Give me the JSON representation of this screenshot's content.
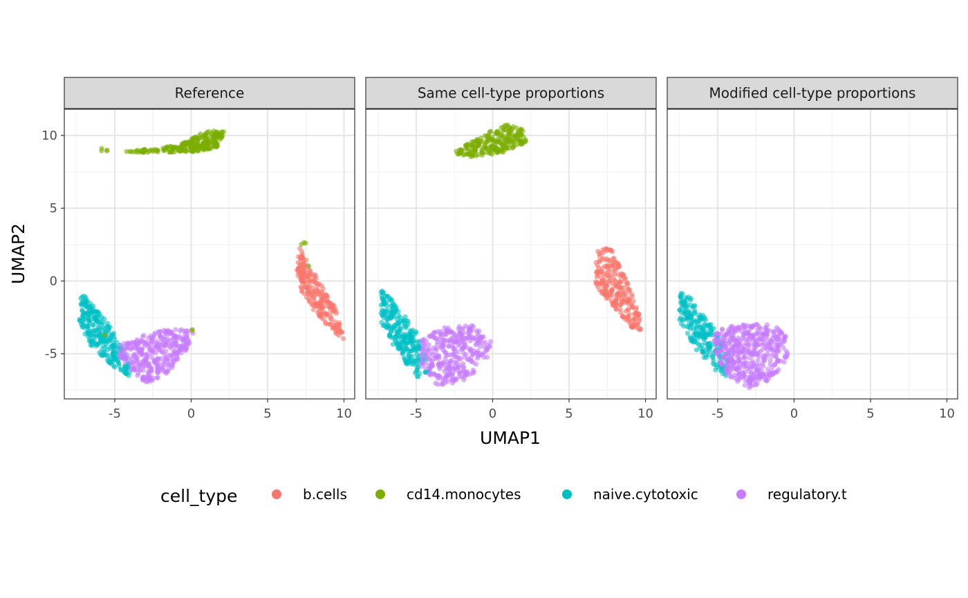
{
  "chart_data": {
    "type": "scatter",
    "xlabel": "UMAP1",
    "ylabel": "UMAP2",
    "xlim": [
      -8.3,
      10.7
    ],
    "ylim": [
      -8.1,
      11.8
    ],
    "x_ticks": [
      -5,
      0,
      5,
      10
    ],
    "y_ticks": [
      -5,
      0,
      5,
      10
    ],
    "x_tick_labels": [
      "-5",
      "0",
      "5",
      "10"
    ],
    "y_tick_labels": [
      "-5",
      "0",
      "5",
      "10"
    ],
    "grid": true,
    "legend_position": "bottom",
    "legend": {
      "title": "cell_type",
      "entries": [
        {
          "label": "b.cells",
          "color": "#F8766D"
        },
        {
          "label": "cd14.monocytes",
          "color": "#7CAE00"
        },
        {
          "label": "naive.cytotoxic",
          "color": "#00BFC4"
        },
        {
          "label": "regulatory.t",
          "color": "#C77CFF"
        }
      ]
    },
    "facets": [
      {
        "label": "Reference",
        "clusters": [
          {
            "cell_type": "cd14.monocytes",
            "n": 260,
            "polygon": [
              [
                -4.3,
                8.9
              ],
              [
                -1.0,
                9.3
              ],
              [
                1.0,
                10.3
              ],
              [
                2.2,
                10.3
              ],
              [
                1.7,
                9.2
              ],
              [
                0.5,
                8.9
              ],
              [
                -3.0,
                8.8
              ]
            ]
          },
          {
            "cell_type": "cd14.monocytes",
            "n": 4,
            "polygon": [
              [
                -5.9,
                9.15
              ],
              [
                -5.5,
                9.15
              ],
              [
                -5.5,
                8.9
              ],
              [
                -5.9,
                8.9
              ]
            ]
          },
          {
            "cell_type": "b.cells",
            "n": 230,
            "polygon": [
              [
                7.1,
                2.5
              ],
              [
                7.6,
                1.3
              ],
              [
                8.6,
                -0.4
              ],
              [
                9.4,
                -1.7
              ],
              [
                10.0,
                -4.0
              ],
              [
                9.2,
                -3.4
              ],
              [
                8.0,
                -2.0
              ],
              [
                7.2,
                -0.8
              ],
              [
                6.9,
                0.8
              ]
            ]
          },
          {
            "cell_type": "cd14.monocytes",
            "n": 3,
            "polygon": [
              [
                7.2,
                2.7
              ],
              [
                7.5,
                2.7
              ],
              [
                7.5,
                2.2
              ],
              [
                7.2,
                2.2
              ]
            ]
          },
          {
            "cell_type": "cd14.monocytes",
            "n": 1,
            "polygon": [
              [
                7.5,
                1.05
              ],
              [
                7.7,
                1.05
              ],
              [
                7.7,
                0.85
              ],
              [
                7.5,
                0.85
              ]
            ]
          },
          {
            "cell_type": "naive.cytotoxic",
            "n": 260,
            "polygon": [
              [
                -7.2,
                -0.7
              ],
              [
                -6.6,
                -1.5
              ],
              [
                -5.6,
                -2.7
              ],
              [
                -4.8,
                -4.0
              ],
              [
                -4.0,
                -5.8
              ],
              [
                -4.0,
                -6.6
              ],
              [
                -5.2,
                -5.8
              ],
              [
                -6.7,
                -4.3
              ],
              [
                -7.3,
                -2.7
              ]
            ]
          },
          {
            "cell_type": "regulatory.t",
            "n": 330,
            "polygon": [
              [
                -4.6,
                -4.3
              ],
              [
                -3.2,
                -3.7
              ],
              [
                -1.2,
                -3.2
              ],
              [
                0.3,
                -3.4
              ],
              [
                -0.4,
                -4.9
              ],
              [
                -1.5,
                -6.3
              ],
              [
                -3.0,
                -7.1
              ],
              [
                -4.0,
                -6.0
              ],
              [
                -4.8,
                -5.0
              ]
            ]
          },
          {
            "cell_type": "cd14.monocytes",
            "n": 2,
            "polygon": [
              [
                0.0,
                -3.3
              ],
              [
                0.3,
                -3.3
              ],
              [
                0.3,
                -3.6
              ],
              [
                0.0,
                -3.6
              ]
            ]
          },
          {
            "cell_type": "cd14.monocytes",
            "n": 1,
            "polygon": [
              [
                -5.8,
                -3.5
              ],
              [
                -5.5,
                -3.5
              ],
              [
                -5.5,
                -3.8
              ],
              [
                -5.8,
                -3.8
              ]
            ]
          }
        ]
      },
      {
        "label": "Same cell-type proportions",
        "clusters": [
          {
            "cell_type": "cd14.monocytes",
            "n": 230,
            "polygon": [
              [
                -2.6,
                8.8
              ],
              [
                -1.0,
                9.8
              ],
              [
                0.8,
                10.8
              ],
              [
                2.0,
                10.4
              ],
              [
                2.2,
                9.5
              ],
              [
                0.7,
                8.8
              ],
              [
                -1.5,
                8.5
              ]
            ]
          },
          {
            "cell_type": "b.cells",
            "n": 250,
            "polygon": [
              [
                6.8,
                2.1
              ],
              [
                7.6,
                2.5
              ],
              [
                8.7,
                0.3
              ],
              [
                9.6,
                -2.3
              ],
              [
                9.8,
                -3.5
              ],
              [
                9.0,
                -3.2
              ],
              [
                7.7,
                -1.6
              ],
              [
                6.7,
                -0.3
              ]
            ]
          },
          {
            "cell_type": "naive.cytotoxic",
            "n": 250,
            "polygon": [
              [
                -7.3,
                -0.6
              ],
              [
                -6.6,
                -1.3
              ],
              [
                -5.6,
                -2.6
              ],
              [
                -4.7,
                -3.9
              ],
              [
                -4.1,
                -6.3
              ],
              [
                -4.9,
                -6.6
              ],
              [
                -6.2,
                -5.0
              ],
              [
                -7.3,
                -2.9
              ]
            ]
          },
          {
            "cell_type": "regulatory.t",
            "n": 320,
            "polygon": [
              [
                -4.6,
                -4.0
              ],
              [
                -3.4,
                -3.2
              ],
              [
                -1.4,
                -3.0
              ],
              [
                -0.1,
                -4.1
              ],
              [
                -0.4,
                -5.8
              ],
              [
                -2.0,
                -6.9
              ],
              [
                -3.6,
                -7.2
              ],
              [
                -4.7,
                -5.8
              ]
            ]
          }
        ]
      },
      {
        "label": "Modified cell-type proportions",
        "clusters": [
          {
            "cell_type": "naive.cytotoxic",
            "n": 230,
            "polygon": [
              [
                -7.5,
                -0.6
              ],
              [
                -6.7,
                -1.2
              ],
              [
                -5.8,
                -2.4
              ],
              [
                -4.9,
                -3.6
              ],
              [
                -4.2,
                -5.1
              ],
              [
                -4.3,
                -6.6
              ],
              [
                -5.2,
                -6.1
              ],
              [
                -6.5,
                -4.6
              ],
              [
                -7.5,
                -2.8
              ]
            ]
          },
          {
            "cell_type": "regulatory.t",
            "n": 440,
            "polygon": [
              [
                -5.3,
                -3.5
              ],
              [
                -3.8,
                -3.0
              ],
              [
                -1.5,
                -2.9
              ],
              [
                -0.5,
                -3.6
              ],
              [
                -0.4,
                -5.2
              ],
              [
                -1.4,
                -6.7
              ],
              [
                -3.0,
                -7.4
              ],
              [
                -4.3,
                -6.6
              ],
              [
                -5.2,
                -4.9
              ]
            ]
          }
        ]
      }
    ]
  }
}
